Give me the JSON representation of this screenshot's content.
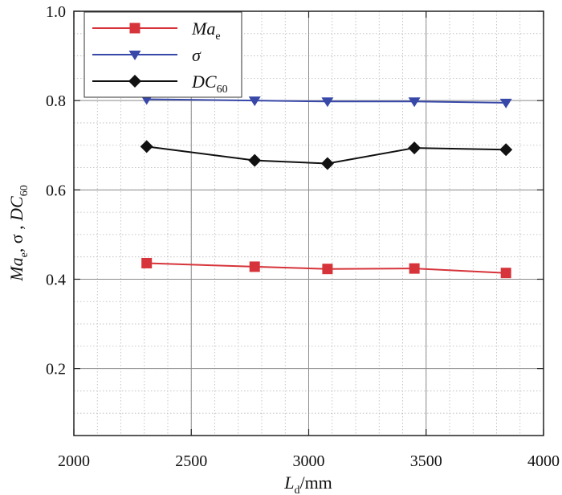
{
  "chart_data": {
    "type": "line",
    "title": "",
    "xlabel": {
      "main": "L",
      "sub": "d",
      "unit": "/mm"
    },
    "ylabel": {
      "parts": [
        {
          "main": "Ma",
          "sub": "e"
        },
        {
          "main": ", σ , "
        },
        {
          "main": "DC",
          "sub": "60"
        }
      ]
    },
    "xlim": [
      2000,
      4000
    ],
    "ylim": [
      0.05,
      1.0
    ],
    "xticks": [
      2000,
      2500,
      3000,
      3500,
      4000
    ],
    "yticks": [
      0.2,
      0.4,
      0.6,
      0.8,
      1.0
    ],
    "xtick_labels": [
      "2000",
      "2500",
      "3000",
      "3500",
      "4000"
    ],
    "ytick_labels": [
      "0.2",
      "0.4",
      "0.6",
      "0.8",
      "1.0"
    ],
    "grid": true,
    "legend_position": "top-left",
    "series": [
      {
        "name": "Ma_e",
        "label_main": "Ma",
        "label_sub": "e",
        "color": "#d6343a",
        "marker": "square",
        "x": [
          2310,
          2770,
          3080,
          3450,
          3840
        ],
        "values": [
          0.436,
          0.428,
          0.423,
          0.424,
          0.414
        ]
      },
      {
        "name": "sigma",
        "label_main": "σ",
        "label_sub": "",
        "color": "#3848a8",
        "marker": "triangle-down",
        "x": [
          2310,
          2770,
          3080,
          3450,
          3840
        ],
        "values": [
          0.803,
          0.8,
          0.798,
          0.798,
          0.795
        ]
      },
      {
        "name": "DC_60",
        "label_main": "DC",
        "label_sub": "60",
        "color": "#111111",
        "marker": "diamond",
        "x": [
          2310,
          2770,
          3080,
          3450,
          3840
        ],
        "values": [
          0.697,
          0.666,
          0.659,
          0.694,
          0.69
        ]
      }
    ]
  }
}
